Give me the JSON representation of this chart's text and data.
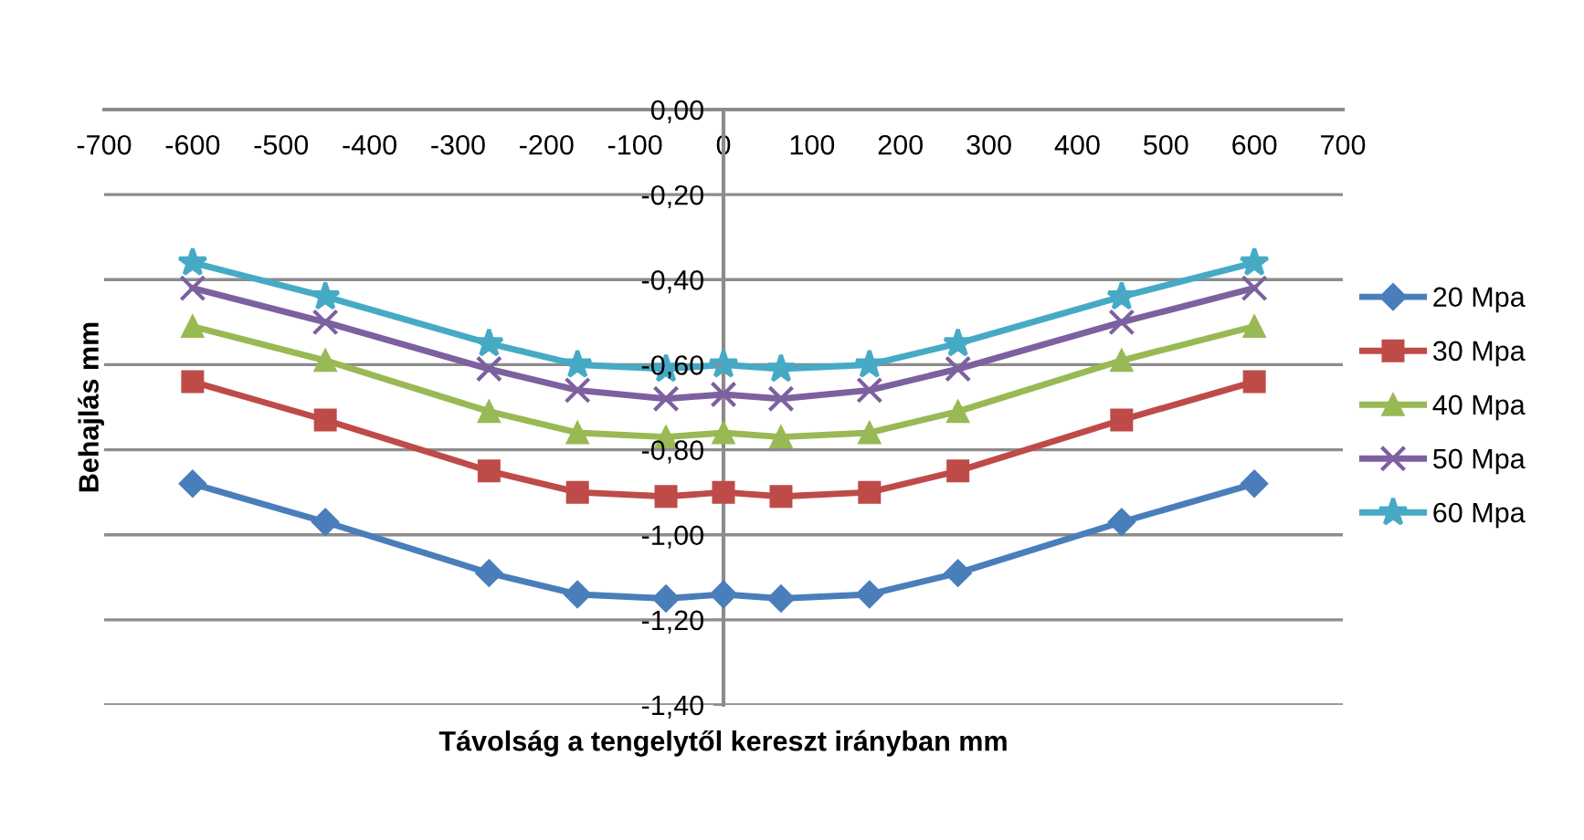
{
  "chart_data": {
    "type": "line",
    "xlabel": "Távolság a tengelytől kereszt irányban mm",
    "ylabel": "Behajlás mm",
    "x": [
      -600,
      -450,
      -265,
      -165,
      -65,
      0,
      65,
      165,
      265,
      450,
      600
    ],
    "xlim": [
      -700,
      700
    ],
    "xticks": [
      -700,
      -600,
      -500,
      -400,
      -300,
      -200,
      -100,
      0,
      100,
      200,
      300,
      400,
      500,
      600,
      700
    ],
    "ylim": [
      -1.4,
      0
    ],
    "yticks": [
      {
        "value": 0,
        "label": "0,00"
      },
      {
        "value": -0.2,
        "label": "-0,20"
      },
      {
        "value": -0.4,
        "label": "-0,40"
      },
      {
        "value": -0.6,
        "label": "-0,60"
      },
      {
        "value": -0.8,
        "label": "-0,80"
      },
      {
        "value": -1.0,
        "label": "-1,00"
      },
      {
        "value": -1.2,
        "label": "-1,20"
      },
      {
        "value": -1.4,
        "label": "-1,40"
      }
    ],
    "grid": "y",
    "legend": "right",
    "line_style": "solid",
    "series": [
      {
        "name": "20 Mpa",
        "color": "#4a7ebb",
        "marker": "diamond",
        "values": [
          -0.88,
          -0.97,
          -1.09,
          -1.14,
          -1.15,
          -1.14,
          -1.15,
          -1.14,
          -1.09,
          -0.97,
          -0.88
        ]
      },
      {
        "name": "30 Mpa",
        "color": "#be4b48",
        "marker": "square",
        "values": [
          -0.64,
          -0.73,
          -0.85,
          -0.9,
          -0.91,
          -0.9,
          -0.91,
          -0.9,
          -0.85,
          -0.73,
          -0.64
        ]
      },
      {
        "name": "40 Mpa",
        "color": "#98b954",
        "marker": "triangle",
        "values": [
          -0.51,
          -0.59,
          -0.71,
          -0.76,
          -0.77,
          -0.76,
          -0.77,
          -0.76,
          -0.71,
          -0.59,
          -0.51
        ]
      },
      {
        "name": "50 Mpa",
        "color": "#7d60a0",
        "marker": "cross",
        "values": [
          -0.42,
          -0.5,
          -0.61,
          -0.66,
          -0.68,
          -0.67,
          -0.68,
          -0.66,
          -0.61,
          -0.5,
          -0.42
        ]
      },
      {
        "name": "60 Mpa",
        "color": "#46aac5",
        "marker": "star",
        "values": [
          -0.36,
          -0.44,
          -0.55,
          -0.6,
          -0.61,
          -0.6,
          -0.61,
          -0.6,
          -0.55,
          -0.44,
          -0.36
        ]
      }
    ]
  }
}
